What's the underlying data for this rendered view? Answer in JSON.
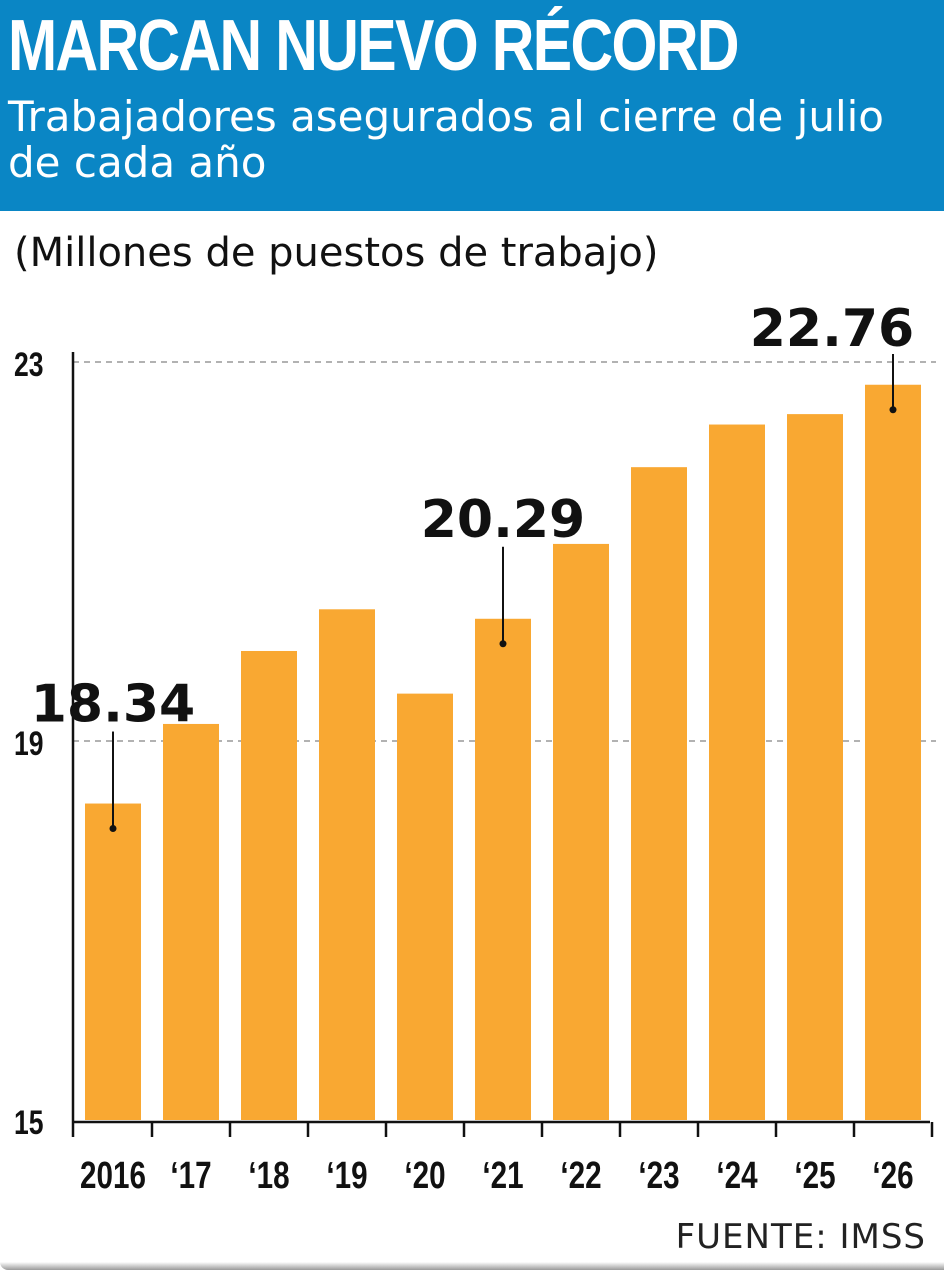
{
  "header": {
    "title": "MARCAN NUEVO RÉCORD",
    "subtitle": "Trabajadores asegurados al cierre de julio de cada año"
  },
  "units_label": "(Millones de puestos de trabajo)",
  "source": "FUENTE: IMSS",
  "colors": {
    "header_bg": "#0a86c5",
    "bar": "#f9a832",
    "text": "#111111",
    "gridline": "#999999"
  },
  "chart_data": {
    "type": "bar",
    "categories": [
      "2016",
      "‘17",
      "‘18",
      "‘19",
      "‘20",
      "‘21",
      "‘22",
      "‘23",
      "‘24",
      "‘25",
      "‘26"
    ],
    "values": [
      18.34,
      19.18,
      19.95,
      20.39,
      19.5,
      20.29,
      21.08,
      21.89,
      22.34,
      22.45,
      22.76
    ],
    "ylim": [
      15,
      23
    ],
    "yticks": [
      "15",
      "19",
      "23"
    ],
    "gridlines": [
      19,
      23
    ],
    "annotations": [
      {
        "index": 0,
        "label": "18.34"
      },
      {
        "index": 5,
        "label": "20.29"
      },
      {
        "index": 10,
        "label": "22.76"
      }
    ],
    "title": "MARCAN NUEVO RÉCORD",
    "subtitle": "Trabajadores asegurados al cierre de julio de cada año",
    "ylabel": "(Millones de puestos de trabajo)",
    "xlabel": ""
  }
}
